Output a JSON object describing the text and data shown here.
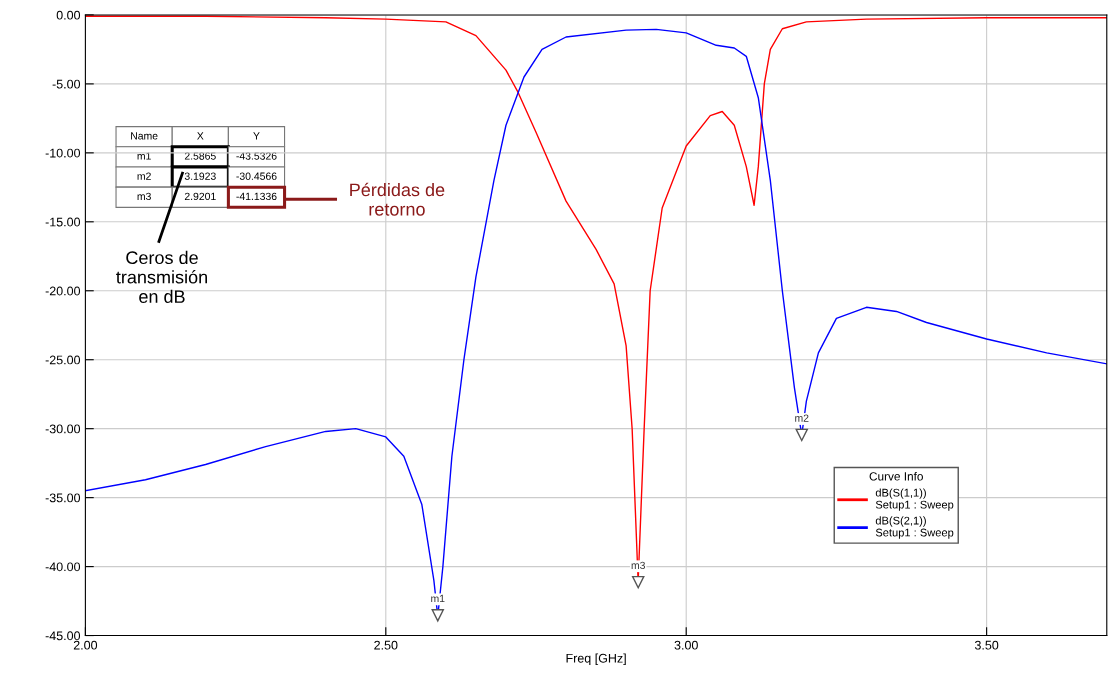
{
  "chart_data": {
    "type": "line",
    "xlabel": "Freq [GHz]",
    "legend_title": "Curve Info",
    "legend": "bottom right",
    "grid": true,
    "marker": "none",
    "line_style": "solid",
    "xlim": [
      2.0,
      3.7
    ],
    "ylim": [
      -45,
      0
    ],
    "xticks": [
      {
        "value": 2.0,
        "label": "2.00"
      },
      {
        "value": 2.5,
        "label": "2.50"
      },
      {
        "value": 3.0,
        "label": "3.00"
      },
      {
        "value": 3.5,
        "label": "3.50"
      }
    ],
    "yticks": [
      {
        "value": -45,
        "label": "-45.00"
      },
      {
        "value": -40,
        "label": "-40.00"
      },
      {
        "value": -35,
        "label": "-35.00"
      },
      {
        "value": -30,
        "label": "-30.00"
      },
      {
        "value": -25,
        "label": "-25.00"
      },
      {
        "value": -20,
        "label": "-20.00"
      },
      {
        "value": -15,
        "label": "-15.00"
      },
      {
        "value": -10,
        "label": "-10.00"
      },
      {
        "value": -5,
        "label": "-5.00"
      },
      {
        "value": 0,
        "label": "0.00"
      }
    ],
    "series": [
      {
        "name": "dB(S(1,1))\nSetup1 : Sweep",
        "color": "#ff0000",
        "x": [
          2.0,
          2.2,
          2.4,
          2.5,
          2.6,
          2.65,
          2.7,
          2.72,
          2.75,
          2.8,
          2.85,
          2.88,
          2.9,
          2.91,
          2.92,
          2.93,
          2.94,
          2.96,
          3.0,
          3.04,
          3.06,
          3.08,
          3.1,
          3.113,
          3.12,
          3.13,
          3.14,
          3.16,
          3.2,
          3.3,
          3.5,
          3.7
        ],
        "values": [
          -0.1,
          -0.1,
          -0.2,
          -0.3,
          -0.5,
          -1.5,
          -4.0,
          -5.6,
          -8.5,
          -13.5,
          -17.0,
          -19.5,
          -24.0,
          -30.0,
          -41.1,
          -30.0,
          -20.0,
          -14.0,
          -9.5,
          -7.3,
          -7.0,
          -8.0,
          -11.0,
          -13.8,
          -11.0,
          -5.0,
          -2.5,
          -1.0,
          -0.5,
          -0.3,
          -0.2,
          -0.2
        ]
      },
      {
        "name": "dB(S(2,1))\nSetup1 : Sweep",
        "color": "#0000ff",
        "x": [
          2.0,
          2.1,
          2.2,
          2.3,
          2.4,
          2.45,
          2.5,
          2.53,
          2.56,
          2.58,
          2.5865,
          2.595,
          2.61,
          2.63,
          2.65,
          2.68,
          2.7,
          2.73,
          2.76,
          2.8,
          2.9,
          2.95,
          3.0,
          3.05,
          3.08,
          3.1,
          3.12,
          3.14,
          3.16,
          3.18,
          3.1923,
          3.2,
          3.22,
          3.25,
          3.3,
          3.35,
          3.4,
          3.5,
          3.6,
          3.7
        ],
        "values": [
          -34.5,
          -33.7,
          -32.6,
          -31.3,
          -30.2,
          -30.0,
          -30.6,
          -32.0,
          -35.5,
          -41.0,
          -43.6,
          -40.0,
          -32.0,
          -25.0,
          -19.0,
          -12.0,
          -8.0,
          -4.5,
          -2.5,
          -1.6,
          -1.1,
          -1.05,
          -1.3,
          -2.2,
          -2.4,
          -3.0,
          -6.0,
          -12.0,
          -20.0,
          -27.0,
          -30.46,
          -28.0,
          -24.5,
          -22.0,
          -21.2,
          -21.5,
          -22.3,
          -23.5,
          -24.5,
          -25.3
        ]
      }
    ],
    "annotations": [
      "Name",
      "X",
      "Y",
      "m1",
      "2.5865",
      "-43.5326",
      "m2",
      "3.1923",
      "-30.4566",
      "m3",
      "2.9201",
      "-41.1336",
      {
        "text": "m1",
        "x": 2.5865,
        "y": -43.5326
      },
      {
        "text": "m2",
        "x": 3.1923,
        "y": -30.4566
      },
      {
        "text": "m3",
        "x": 2.9201,
        "y": -41.1336
      },
      "Ceros de\ntransmisión\nen dB",
      "Pérdidas de\nretorno"
    ]
  }
}
